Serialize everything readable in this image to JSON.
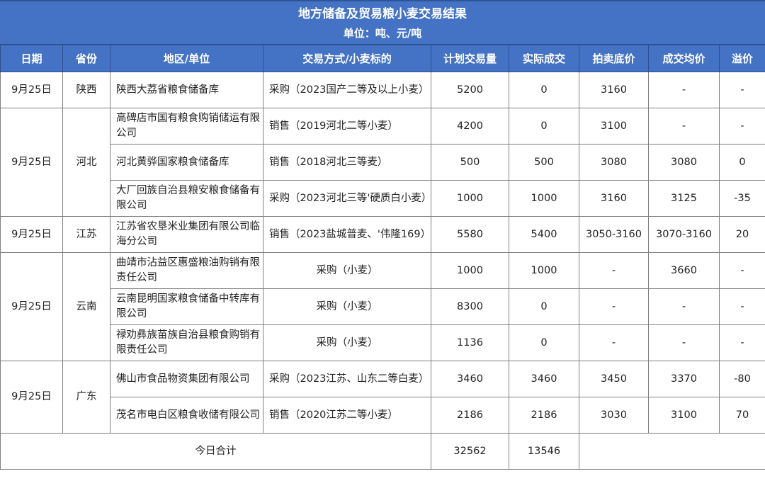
{
  "title": "地方储备及贸易粮小麦交易结果",
  "unit": "单位：吨、元/吨",
  "columns": [
    "日期",
    "省份",
    "地区/单位",
    "交易方式/小麦标的",
    "计划交易量",
    "实际成交",
    "拍卖底价",
    "成交均价",
    "溢价"
  ],
  "header_color": "#4472c4",
  "groups": [
    {
      "date": "9月25日",
      "province": "陕西",
      "rows": [
        {
          "unit": "陕西大荔省粮食储备库",
          "method": "采购（2023国产二等及以上小麦）",
          "plan": "5200",
          "actual": "0",
          "floor": "3160",
          "avg": "-",
          "premium": "-"
        }
      ]
    },
    {
      "date": "9月25日",
      "province": "河北",
      "rows": [
        {
          "unit": "高碑店市国有粮食购销储运有限公司",
          "method": "销售（2019河北二等小麦）",
          "plan": "4200",
          "actual": "0",
          "floor": "3100",
          "avg": "-",
          "premium": "-"
        },
        {
          "unit": "河北黄骅国家粮食储备库",
          "method": "销售（2018河北三等麦）",
          "plan": "500",
          "actual": "500",
          "floor": "3080",
          "avg": "3080",
          "premium": "0"
        },
        {
          "unit": "大厂回族自治县粮安粮食储备有限公司",
          "method": "采购（2023河北三等'硬质白小麦）",
          "plan": "1000",
          "actual": "1000",
          "floor": "3160",
          "avg": "3125",
          "premium": "-35"
        }
      ]
    },
    {
      "date": "9月25日",
      "province": "江苏",
      "rows": [
        {
          "unit": "江苏省农垦米业集团有限公司临海分公司",
          "method": "销售（2023盐城普麦、'伟隆169）",
          "plan": "5580",
          "actual": "5400",
          "floor": "3050-3160",
          "avg": "3070-3160",
          "premium": "20"
        }
      ]
    },
    {
      "date": "9月25日",
      "province": "云南",
      "rows": [
        {
          "unit": "曲靖市沾益区惠盛粮油购销有限责任公司",
          "method": "采购（小麦）",
          "plan": "1000",
          "actual": "1000",
          "floor": "-",
          "avg": "3660",
          "premium": "-"
        },
        {
          "unit": "云南昆明国家粮食储备中转库有限公司",
          "method": "采购（小麦）",
          "plan": "8300",
          "actual": "0",
          "floor": "-",
          "avg": "-",
          "premium": "-"
        },
        {
          "unit": "禄劝彝族苗族自治县粮食购销有限责任公司",
          "method": "采购（小麦）",
          "plan": "1136",
          "actual": "0",
          "floor": "-",
          "avg": "-",
          "premium": "-"
        }
      ]
    },
    {
      "date": "9月25日",
      "province": "广东",
      "rows": [
        {
          "unit": "佛山市食品物资集团有限公司",
          "method": "采购（2023江苏、山东二等白麦）",
          "plan": "3460",
          "actual": "3460",
          "floor": "3450",
          "avg": "3370",
          "premium": "-80"
        },
        {
          "unit": "茂名市电白区粮食收储有限公司",
          "method": "销售（2020江苏二等小麦）",
          "plan": "2186",
          "actual": "2186",
          "floor": "3030",
          "avg": "3100",
          "premium": "70"
        }
      ]
    }
  ],
  "total": {
    "label": "今日合计",
    "plan": "32562",
    "actual": "13546"
  }
}
